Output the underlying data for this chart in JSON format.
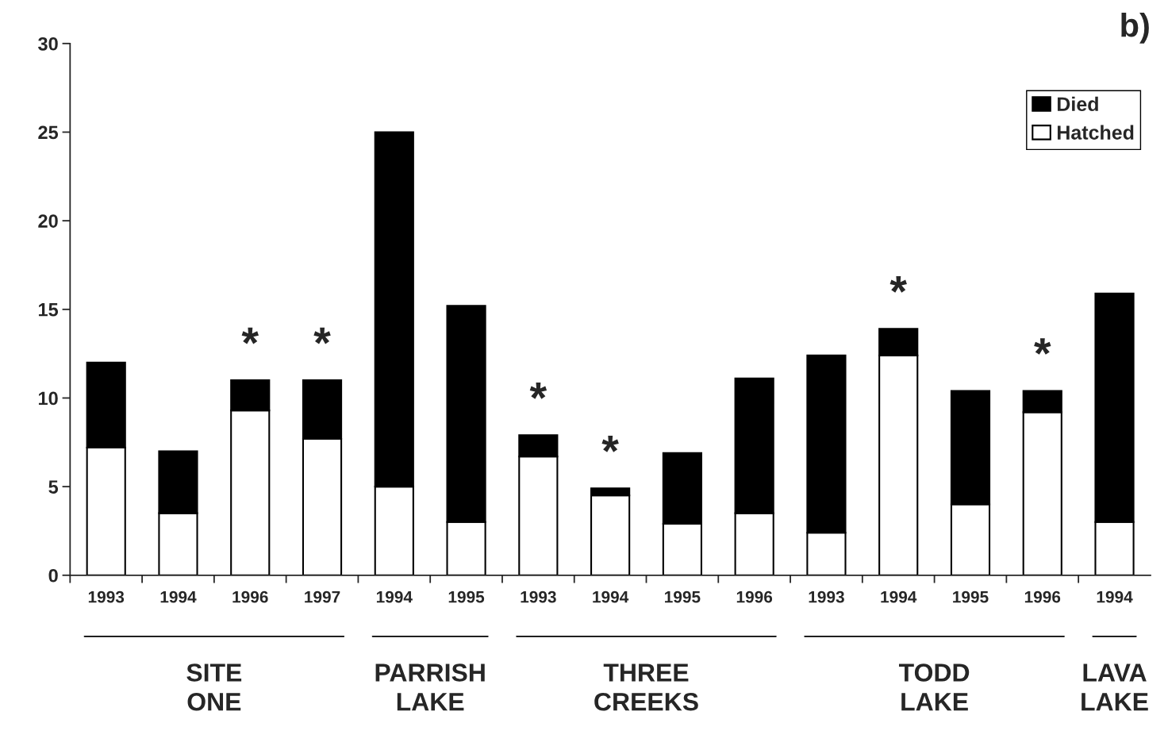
{
  "chart_data": {
    "type": "bar",
    "stacked": true,
    "title": "b)",
    "categories": [
      "1993",
      "1994",
      "1996",
      "1997",
      "1994",
      "1995",
      "1993",
      "1994",
      "1995",
      "1996",
      "1993",
      "1994",
      "1995",
      "1996",
      "1994"
    ],
    "series": [
      {
        "name": "Hatched",
        "color": "#ffffff",
        "values": [
          7.2,
          3.5,
          9.3,
          7.7,
          5.0,
          3.0,
          6.7,
          4.5,
          2.9,
          3.5,
          2.4,
          12.4,
          4.0,
          9.2,
          3.0
        ]
      },
      {
        "name": "Died",
        "color": "#000000",
        "values": [
          4.8,
          3.5,
          1.7,
          3.3,
          20.0,
          12.2,
          1.2,
          0.4,
          4.0,
          7.6,
          10.0,
          1.5,
          6.4,
          1.2,
          12.9
        ]
      }
    ],
    "ylim": [
      0,
      30
    ],
    "yticks": [
      0,
      5,
      10,
      15,
      20,
      25,
      30
    ],
    "grid": false,
    "legend": "top right",
    "annotations": [
      {
        "text": "*",
        "x": "1996",
        "y": 11.0
      },
      {
        "text": "*",
        "x": "1997",
        "y": 11.0
      },
      {
        "text": "*",
        "y": 7.9
      },
      {
        "text": "*",
        "y": 4.9
      },
      {
        "text": "*",
        "y": 13.9
      },
      {
        "text": "*",
        "y": 10.4
      },
      "SITE\nONE",
      "PARRISH\nLAKE",
      "THREE\nCREEKS",
      "TODD\nLAKE",
      "LAVA\nLAKE"
    ]
  }
}
